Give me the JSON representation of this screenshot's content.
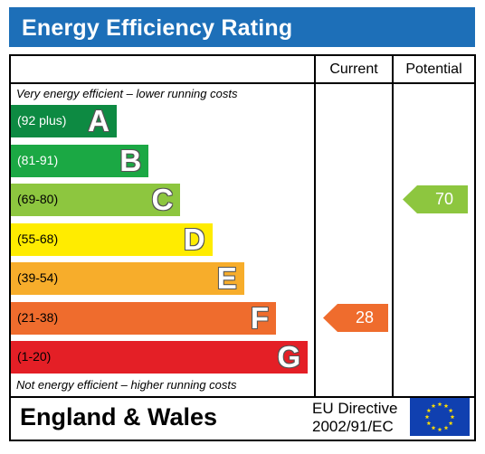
{
  "title": "Energy Efficiency Rating",
  "columns": {
    "current": "Current",
    "potential": "Potential"
  },
  "top_note": "Very energy efficient – lower running costs",
  "bottom_note": "Not energy efficient – higher running costs",
  "bands": [
    {
      "letter": "A",
      "range": "(92 plus)",
      "color": "#0d8a42",
      "range_color": "#ffffff"
    },
    {
      "letter": "B",
      "range": "(81-91)",
      "color": "#1ba844",
      "range_color": "#ffffff"
    },
    {
      "letter": "C",
      "range": "(69-80)",
      "color": "#8dc63f",
      "range_color": "#000000"
    },
    {
      "letter": "D",
      "range": "(55-68)",
      "color": "#ffec00",
      "range_color": "#000000"
    },
    {
      "letter": "E",
      "range": "(39-54)",
      "color": "#f7ad2b",
      "range_color": "#000000"
    },
    {
      "letter": "F",
      "range": "(21-38)",
      "color": "#ef6c2d",
      "range_color": "#000000"
    },
    {
      "letter": "G",
      "range": "(1-20)",
      "color": "#e41f26",
      "range_color": "#000000"
    }
  ],
  "current": {
    "value": "28",
    "band": "F",
    "color": "#ef6c2d"
  },
  "potential": {
    "value": "70",
    "band": "C",
    "color": "#8dc63f"
  },
  "footer": {
    "region": "England & Wales",
    "directive_line1": "EU Directive",
    "directive_line2": "2002/91/EC"
  },
  "flag_color": "#1040b0",
  "star_color": "#ffdd00"
}
